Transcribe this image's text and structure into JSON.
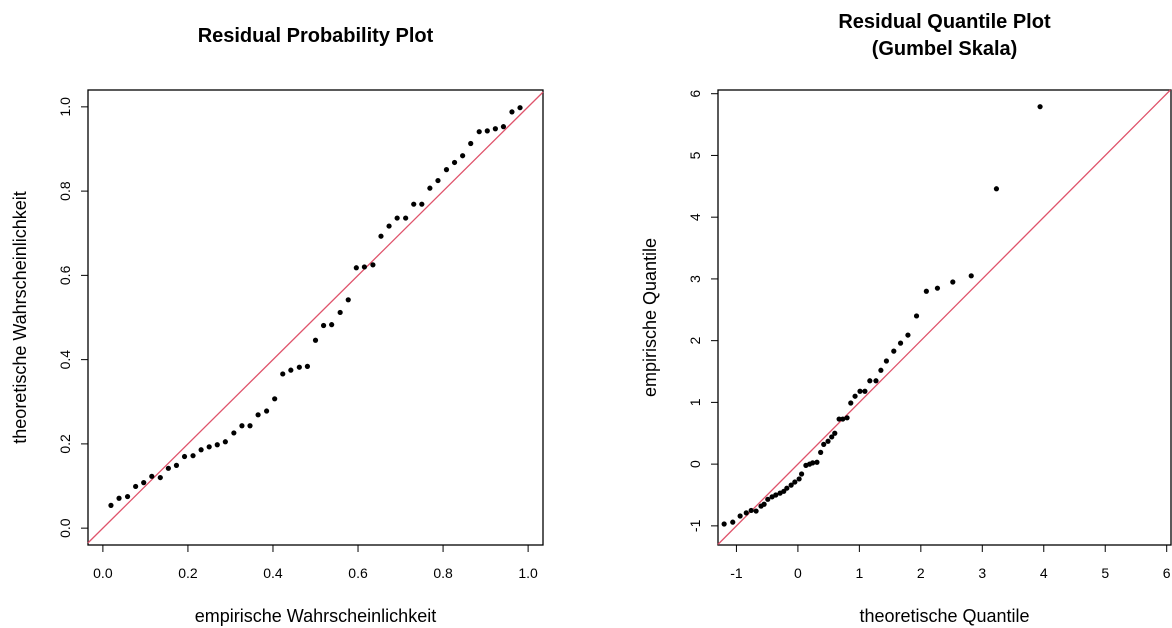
{
  "chart_data": [
    {
      "type": "scatter",
      "title": [
        "Residual Probability Plot"
      ],
      "xlabel": "empirische Wahrscheinlichkeit",
      "ylabel": "theoretische Wahrscheinlichkeit",
      "xlim": [
        -0.035,
        1.035
      ],
      "ylim": [
        -0.04,
        1.04
      ],
      "xticks": [
        {
          "value": 0,
          "label": "0.0"
        },
        {
          "value": 0.2,
          "label": "0.2"
        },
        {
          "value": 0.4,
          "label": "0.4"
        },
        {
          "value": 0.6,
          "label": "0.6"
        },
        {
          "value": 0.8,
          "label": "0.8"
        },
        {
          "value": 1,
          "label": "1.0"
        }
      ],
      "yticks": [
        {
          "value": 0,
          "label": "0.0"
        },
        {
          "value": 0.2,
          "label": "0.2"
        },
        {
          "value": 0.4,
          "label": "0.4"
        },
        {
          "value": 0.6,
          "label": "0.6"
        },
        {
          "value": 0.8,
          "label": "0.8"
        },
        {
          "value": 1,
          "label": "1.0"
        }
      ],
      "color": "#000000",
      "ref_line_color": "#df536b",
      "x": [
        0.019,
        0.038,
        0.058,
        0.077,
        0.096,
        0.115,
        0.135,
        0.154,
        0.173,
        0.192,
        0.212,
        0.231,
        0.25,
        0.269,
        0.288,
        0.308,
        0.327,
        0.346,
        0.365,
        0.385,
        0.404,
        0.423,
        0.442,
        0.462,
        0.481,
        0.5,
        0.519,
        0.538,
        0.558,
        0.577,
        0.596,
        0.615,
        0.635,
        0.654,
        0.673,
        0.692,
        0.712,
        0.731,
        0.75,
        0.769,
        0.788,
        0.808,
        0.827,
        0.846,
        0.865,
        0.885,
        0.904,
        0.923,
        0.942,
        0.962,
        0.981
      ],
      "y": [
        0.054,
        0.071,
        0.075,
        0.099,
        0.108,
        0.123,
        0.12,
        0.142,
        0.149,
        0.17,
        0.172,
        0.186,
        0.193,
        0.198,
        0.205,
        0.226,
        0.243,
        0.243,
        0.269,
        0.278,
        0.307,
        0.366,
        0.375,
        0.382,
        0.384,
        0.446,
        0.481,
        0.483,
        0.512,
        0.542,
        0.618,
        0.62,
        0.625,
        0.693,
        0.717,
        0.736,
        0.736,
        0.769,
        0.769,
        0.807,
        0.825,
        0.851,
        0.868,
        0.884,
        0.913,
        0.941,
        0.943,
        0.948,
        0.953,
        0.988,
        0.998
      ]
    },
    {
      "type": "scatter",
      "title": [
        "Residual Quantile Plot",
        "(Gumbel Skala)"
      ],
      "xlabel": "theoretische Quantile",
      "ylabel": "empirische Quantile",
      "xlim": [
        -1.3,
        6.07
      ],
      "ylim": [
        -1.31,
        6.06
      ],
      "xticks": [
        -1,
        0,
        1,
        2,
        3,
        4,
        5,
        6
      ],
      "yticks": [
        -1,
        0,
        1,
        2,
        3,
        4,
        5,
        6
      ],
      "color": "#000000",
      "ref_line_color": "#df536b",
      "x": [
        -1.2,
        -1.06,
        -0.94,
        -0.84,
        -0.76,
        -0.68,
        -0.6,
        -0.55,
        -0.49,
        -0.42,
        -0.36,
        -0.29,
        -0.23,
        -0.18,
        -0.11,
        -0.05,
        0.02,
        0.06,
        0.13,
        0.19,
        0.24,
        0.31,
        0.37,
        0.42,
        0.49,
        0.55,
        0.6,
        0.67,
        0.73,
        0.8,
        0.86,
        0.93,
        1.01,
        1.09,
        1.17,
        1.27,
        1.35,
        1.44,
        1.56,
        1.67,
        1.79,
        1.93,
        2.09,
        2.27,
        2.52,
        2.82,
        3.23,
        3.94
      ],
      "y": [
        -0.97,
        -0.94,
        -0.84,
        -0.79,
        -0.75,
        -0.76,
        -0.68,
        -0.65,
        -0.57,
        -0.53,
        -0.5,
        -0.47,
        -0.44,
        -0.39,
        -0.34,
        -0.29,
        -0.24,
        -0.16,
        -0.02,
        0,
        0.02,
        0.03,
        0.19,
        0.32,
        0.37,
        0.44,
        0.5,
        0.73,
        0.73,
        0.75,
        0.99,
        1.1,
        1.18,
        1.18,
        1.35,
        1.35,
        1.52,
        1.67,
        1.83,
        1.96,
        2.09,
        2.4,
        2.8,
        2.85,
        2.95,
        3.05,
        4.46,
        5.79
      ]
    }
  ]
}
